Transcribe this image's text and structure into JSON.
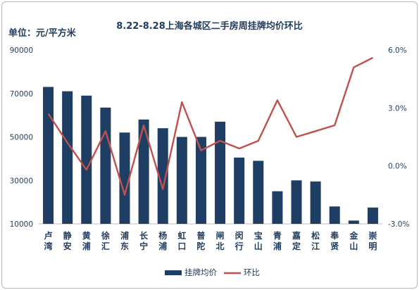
{
  "chart_data": {
    "type": "bar",
    "title": "8.22-8.28上海各城区二手房周挂牌均价环比",
    "unit_label": "单位：元/平方米",
    "categories": [
      "卢\n湾",
      "静\n安",
      "黄\n浦",
      "徐\n汇",
      "浦\n东",
      "长\n宁",
      "杨\n浦",
      "虹\n口",
      "普\n陀",
      "闸\n北",
      "闵\n行",
      "宝\n山",
      "青\n浦",
      "嘉\n定",
      "松\n江",
      "奉\n贤",
      "金\n山",
      "崇\n明"
    ],
    "series": [
      {
        "name": "挂牌均价",
        "type": "bar",
        "axis": "left",
        "color": "#1f3e63",
        "values": [
          73000,
          71000,
          69000,
          63500,
          52000,
          58000,
          54000,
          50000,
          50000,
          57000,
          40500,
          39000,
          25000,
          30000,
          29500,
          18000,
          11500,
          17500
        ]
      },
      {
        "name": "环比",
        "type": "line",
        "axis": "right",
        "color": "#c0504d",
        "values": [
          2.7,
          1.2,
          -0.2,
          1.8,
          -1.5,
          2.1,
          -1.2,
          3.3,
          0.8,
          1.3,
          0.9,
          1.3,
          3.4,
          1.5,
          1.8,
          2.1,
          5.1,
          5.6
        ]
      }
    ],
    "y_left": {
      "min": 10000,
      "max": 90000,
      "ticks": [
        "10000",
        "30000",
        "50000",
        "70000",
        "90000"
      ],
      "tick_values": [
        10000,
        30000,
        50000,
        70000,
        90000
      ]
    },
    "y_right": {
      "min": -3.0,
      "max": 6.0,
      "ticks": [
        "-3.0%",
        "0.0%",
        "3.0%",
        "6.0%"
      ],
      "tick_values": [
        -3,
        0,
        3,
        6
      ]
    },
    "legend": {
      "placement": "bottom",
      "items": [
        "挂牌均价",
        "环比"
      ]
    },
    "grid": false
  }
}
